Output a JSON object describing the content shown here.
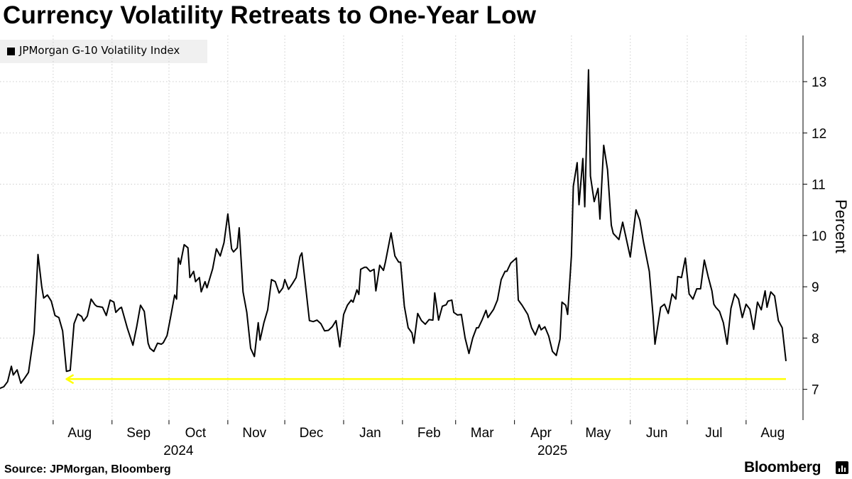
{
  "title": "Currency Volatility Retreats to One-Year Low",
  "source": "Source: JPMorgan, Bloomberg",
  "brand": "Bloomberg",
  "chart_data": {
    "type": "line",
    "title": "Currency Volatility Retreats to One-Year Low",
    "ylabel": "Percent",
    "xlabel": "",
    "ylim": [
      6.4,
      13.9
    ],
    "yticks": [
      7,
      8,
      9,
      10,
      11,
      12,
      13
    ],
    "x_range": [
      "2024-07-04",
      "2025-08-22"
    ],
    "xticks": [
      {
        "label": "Aug",
        "date": "2024-08-15"
      },
      {
        "label": "Sep",
        "date": "2024-09-15"
      },
      {
        "label": "Oct",
        "date": "2024-10-15"
      },
      {
        "label": "Nov",
        "date": "2024-11-15"
      },
      {
        "label": "Dec",
        "date": "2024-12-15"
      },
      {
        "label": "Jan",
        "date": "2025-01-15"
      },
      {
        "label": "Feb",
        "date": "2025-02-15"
      },
      {
        "label": "Mar",
        "date": "2025-03-15"
      },
      {
        "label": "Apr",
        "date": "2025-04-15"
      },
      {
        "label": "May",
        "date": "2025-05-15"
      },
      {
        "label": "Jun",
        "date": "2025-06-15"
      },
      {
        "label": "Jul",
        "date": "2025-07-15"
      },
      {
        "label": "Aug",
        "date": "2025-08-15"
      }
    ],
    "year_labels": [
      {
        "label": "2024",
        "date": "2024-10-06"
      },
      {
        "label": "2025",
        "date": "2025-04-21"
      }
    ],
    "grid": true,
    "grid_lines": [
      "2024-07-01",
      "2024-08-01",
      "2024-09-01",
      "2024-10-01",
      "2024-11-01",
      "2024-12-01",
      "2025-01-01",
      "2025-02-01",
      "2025-03-01",
      "2025-04-01",
      "2025-05-01",
      "2025-06-01",
      "2025-07-01",
      "2025-08-01"
    ],
    "legend_position": "top-left",
    "colors": {
      "line": "#000000",
      "annotation": "#ffff00",
      "grid": "#cccccc"
    },
    "series": [
      {
        "name": "JPMorgan G-10 Volatility Index",
        "points": [
          [
            "2024-07-04",
            7.02
          ],
          [
            "2024-07-06",
            7.05
          ],
          [
            "2024-07-08",
            7.15
          ],
          [
            "2024-07-10",
            7.45
          ],
          [
            "2024-07-11",
            7.28
          ],
          [
            "2024-07-13",
            7.38
          ],
          [
            "2024-07-15",
            7.12
          ],
          [
            "2024-07-17",
            7.22
          ],
          [
            "2024-07-19",
            7.33
          ],
          [
            "2024-07-22",
            8.1
          ],
          [
            "2024-07-24",
            9.63
          ],
          [
            "2024-07-26",
            9.0
          ],
          [
            "2024-07-27",
            8.78
          ],
          [
            "2024-07-29",
            8.84
          ],
          [
            "2024-07-31",
            8.72
          ],
          [
            "2024-08-02",
            8.44
          ],
          [
            "2024-08-04",
            8.4
          ],
          [
            "2024-08-06",
            8.14
          ],
          [
            "2024-08-08",
            7.35
          ],
          [
            "2024-08-10",
            7.37
          ],
          [
            "2024-08-12",
            8.28
          ],
          [
            "2024-08-14",
            8.47
          ],
          [
            "2024-08-16",
            8.42
          ],
          [
            "2024-08-17",
            8.33
          ],
          [
            "2024-08-19",
            8.43
          ],
          [
            "2024-08-21",
            8.76
          ],
          [
            "2024-08-23",
            8.65
          ],
          [
            "2024-08-24",
            8.62
          ],
          [
            "2024-08-27",
            8.6
          ],
          [
            "2024-08-29",
            8.44
          ],
          [
            "2024-08-31",
            8.74
          ],
          [
            "2024-09-02",
            8.7
          ],
          [
            "2024-09-03",
            8.5
          ],
          [
            "2024-09-05",
            8.58
          ],
          [
            "2024-09-06",
            8.6
          ],
          [
            "2024-09-09",
            8.2
          ],
          [
            "2024-09-12",
            7.86
          ],
          [
            "2024-09-14",
            8.22
          ],
          [
            "2024-09-16",
            8.64
          ],
          [
            "2024-09-18",
            8.52
          ],
          [
            "2024-09-20",
            7.9
          ],
          [
            "2024-09-21",
            7.8
          ],
          [
            "2024-09-23",
            7.74
          ],
          [
            "2024-09-25",
            7.9
          ],
          [
            "2024-09-27",
            7.88
          ],
          [
            "2024-09-28",
            7.91
          ],
          [
            "2024-09-30",
            8.05
          ],
          [
            "2024-10-02",
            8.44
          ],
          [
            "2024-10-04",
            8.84
          ],
          [
            "2024-10-05",
            8.76
          ],
          [
            "2024-10-06",
            9.56
          ],
          [
            "2024-10-07",
            9.44
          ],
          [
            "2024-10-09",
            9.82
          ],
          [
            "2024-10-11",
            9.76
          ],
          [
            "2024-10-12",
            9.18
          ],
          [
            "2024-10-14",
            9.3
          ],
          [
            "2024-10-15",
            9.1
          ],
          [
            "2024-10-17",
            9.18
          ],
          [
            "2024-10-18",
            8.9
          ],
          [
            "2024-10-20",
            9.1
          ],
          [
            "2024-10-21",
            8.98
          ],
          [
            "2024-10-24",
            9.35
          ],
          [
            "2024-10-26",
            9.74
          ],
          [
            "2024-10-28",
            9.6
          ],
          [
            "2024-10-30",
            9.86
          ],
          [
            "2024-11-01",
            10.42
          ],
          [
            "2024-11-03",
            9.74
          ],
          [
            "2024-11-04",
            9.68
          ],
          [
            "2024-11-06",
            9.76
          ],
          [
            "2024-11-07",
            10.15
          ],
          [
            "2024-11-09",
            8.9
          ],
          [
            "2024-11-11",
            8.5
          ],
          [
            "2024-11-13",
            7.8
          ],
          [
            "2024-11-15",
            7.64
          ],
          [
            "2024-11-17",
            8.3
          ],
          [
            "2024-11-18",
            7.96
          ],
          [
            "2024-11-20",
            8.3
          ],
          [
            "2024-11-22",
            8.55
          ],
          [
            "2024-11-24",
            9.14
          ],
          [
            "2024-11-26",
            9.1
          ],
          [
            "2024-11-28",
            8.88
          ],
          [
            "2024-11-30",
            8.98
          ],
          [
            "2024-12-01",
            9.14
          ],
          [
            "2024-12-03",
            8.95
          ],
          [
            "2024-12-05",
            9.06
          ],
          [
            "2024-12-07",
            9.18
          ],
          [
            "2024-12-09",
            9.59
          ],
          [
            "2024-12-10",
            9.66
          ],
          [
            "2024-12-14",
            8.34
          ],
          [
            "2024-12-16",
            8.32
          ],
          [
            "2024-12-18",
            8.35
          ],
          [
            "2024-12-20",
            8.28
          ],
          [
            "2024-12-22",
            8.14
          ],
          [
            "2024-12-24",
            8.15
          ],
          [
            "2024-12-26",
            8.22
          ],
          [
            "2024-12-28",
            8.34
          ],
          [
            "2024-12-30",
            7.83
          ],
          [
            "2025-01-01",
            8.46
          ],
          [
            "2025-01-03",
            8.64
          ],
          [
            "2025-01-05",
            8.74
          ],
          [
            "2025-01-06",
            8.7
          ],
          [
            "2025-01-08",
            8.94
          ],
          [
            "2025-01-09",
            8.85
          ],
          [
            "2025-01-10",
            9.34
          ],
          [
            "2025-01-12",
            9.38
          ],
          [
            "2025-01-13",
            9.38
          ],
          [
            "2025-01-15",
            9.3
          ],
          [
            "2025-01-17",
            9.34
          ],
          [
            "2025-01-18",
            8.92
          ],
          [
            "2025-01-20",
            9.42
          ],
          [
            "2025-01-22",
            9.32
          ],
          [
            "2025-01-23",
            9.48
          ],
          [
            "2025-01-26",
            10.05
          ],
          [
            "2025-01-28",
            9.6
          ],
          [
            "2025-01-30",
            9.48
          ],
          [
            "2025-01-31",
            9.48
          ],
          [
            "2025-02-02",
            8.62
          ],
          [
            "2025-02-04",
            8.2
          ],
          [
            "2025-02-06",
            8.1
          ],
          [
            "2025-02-07",
            7.9
          ],
          [
            "2025-02-09",
            8.48
          ],
          [
            "2025-02-11",
            8.34
          ],
          [
            "2025-02-13",
            8.27
          ],
          [
            "2025-02-15",
            8.36
          ],
          [
            "2025-02-17",
            8.35
          ],
          [
            "2025-02-18",
            8.88
          ],
          [
            "2025-02-20",
            8.35
          ],
          [
            "2025-02-22",
            8.62
          ],
          [
            "2025-02-24",
            8.65
          ],
          [
            "2025-02-25",
            8.72
          ],
          [
            "2025-02-27",
            8.74
          ],
          [
            "2025-02-28",
            8.5
          ],
          [
            "2025-03-02",
            8.45
          ],
          [
            "2025-03-04",
            8.46
          ],
          [
            "2025-03-06",
            8.0
          ],
          [
            "2025-03-08",
            7.7
          ],
          [
            "2025-03-10",
            8.0
          ],
          [
            "2025-03-12",
            8.2
          ],
          [
            "2025-03-13",
            8.2
          ],
          [
            "2025-03-15",
            8.36
          ],
          [
            "2025-03-17",
            8.54
          ],
          [
            "2025-03-18",
            8.4
          ],
          [
            "2025-03-21",
            8.56
          ],
          [
            "2025-03-23",
            8.74
          ],
          [
            "2025-03-25",
            9.14
          ],
          [
            "2025-03-27",
            9.3
          ],
          [
            "2025-03-28",
            9.3
          ],
          [
            "2025-03-30",
            9.46
          ],
          [
            "2025-04-02",
            9.56
          ],
          [
            "2025-04-03",
            8.74
          ],
          [
            "2025-04-05",
            8.64
          ],
          [
            "2025-04-08",
            8.46
          ],
          [
            "2025-04-10",
            8.2
          ],
          [
            "2025-04-12",
            8.06
          ],
          [
            "2025-04-14",
            8.26
          ],
          [
            "2025-04-15",
            8.16
          ],
          [
            "2025-04-17",
            8.22
          ],
          [
            "2025-04-19",
            8.04
          ],
          [
            "2025-04-21",
            7.74
          ],
          [
            "2025-04-23",
            7.66
          ],
          [
            "2025-04-25",
            7.98
          ],
          [
            "2025-04-26",
            8.7
          ],
          [
            "2025-04-28",
            8.64
          ],
          [
            "2025-04-29",
            8.46
          ],
          [
            "2025-05-01",
            9.6
          ],
          [
            "2025-05-02",
            10.96
          ],
          [
            "2025-05-04",
            11.42
          ],
          [
            "2025-05-05",
            10.6
          ],
          [
            "2025-05-07",
            11.5
          ],
          [
            "2025-05-08",
            10.56
          ],
          [
            "2025-05-10",
            13.23
          ],
          [
            "2025-05-11",
            11.16
          ],
          [
            "2025-05-13",
            10.66
          ],
          [
            "2025-05-15",
            10.92
          ],
          [
            "2025-05-16",
            10.32
          ],
          [
            "2025-05-18",
            11.76
          ],
          [
            "2025-05-20",
            11.28
          ],
          [
            "2025-05-22",
            10.2
          ],
          [
            "2025-05-23",
            10.04
          ],
          [
            "2025-05-26",
            9.92
          ],
          [
            "2025-05-28",
            10.26
          ],
          [
            "2025-06-01",
            9.58
          ],
          [
            "2025-06-04",
            10.5
          ],
          [
            "2025-06-06",
            10.3
          ],
          [
            "2025-06-08",
            9.86
          ],
          [
            "2025-06-11",
            9.3
          ],
          [
            "2025-06-13",
            8.44
          ],
          [
            "2025-06-14",
            7.88
          ],
          [
            "2025-06-17",
            8.6
          ],
          [
            "2025-06-19",
            8.66
          ],
          [
            "2025-06-21",
            8.48
          ],
          [
            "2025-06-23",
            8.86
          ],
          [
            "2025-06-25",
            8.76
          ],
          [
            "2025-06-26",
            9.2
          ],
          [
            "2025-06-28",
            9.18
          ],
          [
            "2025-06-30",
            9.56
          ],
          [
            "2025-07-02",
            8.86
          ],
          [
            "2025-07-04",
            8.76
          ],
          [
            "2025-07-06",
            8.96
          ],
          [
            "2025-07-08",
            8.96
          ],
          [
            "2025-07-10",
            9.52
          ],
          [
            "2025-07-12",
            9.2
          ],
          [
            "2025-07-14",
            8.92
          ],
          [
            "2025-07-15",
            8.66
          ],
          [
            "2025-07-16",
            8.6
          ],
          [
            "2025-07-18",
            8.52
          ],
          [
            "2025-07-20",
            8.3
          ],
          [
            "2025-07-22",
            7.88
          ],
          [
            "2025-07-24",
            8.58
          ],
          [
            "2025-07-26",
            8.86
          ],
          [
            "2025-07-28",
            8.76
          ],
          [
            "2025-07-30",
            8.4
          ],
          [
            "2025-08-01",
            8.66
          ],
          [
            "2025-08-03",
            8.56
          ],
          [
            "2025-08-05",
            8.17
          ],
          [
            "2025-08-07",
            8.7
          ],
          [
            "2025-08-09",
            8.55
          ],
          [
            "2025-08-11",
            8.92
          ],
          [
            "2025-08-12",
            8.6
          ],
          [
            "2025-08-14",
            8.9
          ],
          [
            "2025-08-16",
            8.82
          ],
          [
            "2025-08-18",
            8.34
          ],
          [
            "2025-08-20",
            8.2
          ],
          [
            "2025-08-22",
            7.55
          ]
        ]
      }
    ],
    "annotation": {
      "type": "arrow",
      "direction": "left",
      "y": 7.2,
      "x_start": "2025-08-22",
      "x_end": "2024-08-08",
      "color": "#ffff00"
    }
  }
}
